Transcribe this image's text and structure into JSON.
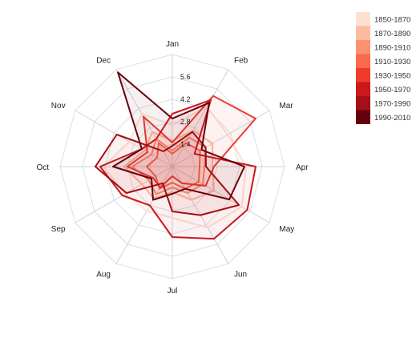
{
  "chart_data": {
    "type": "radar",
    "title": "",
    "axes": [
      "Jan",
      "Feb",
      "Mar",
      "Apr",
      "May",
      "Jun",
      "Jul",
      "Aug",
      "Sep",
      "Oct",
      "Nov",
      "Dec"
    ],
    "radial_ticks": [
      "1.4",
      "2.8",
      "4.2",
      "5.6"
    ],
    "rmax": 7,
    "grid": true,
    "legend_position": "top-right",
    "series": [
      {
        "name": "1850-1870",
        "color": "#fde0d2",
        "values": [
          2.6,
          4.3,
          4.0,
          4.6,
          5.0,
          4.4,
          3.2,
          3.2,
          3.4,
          4.3,
          3.1,
          3.8
        ]
      },
      {
        "name": "1870-1890",
        "color": "#fcbba1",
        "values": [
          1.6,
          2.6,
          2.9,
          2.5,
          3.0,
          2.4,
          1.6,
          2.3,
          2.2,
          3.0,
          2.0,
          2.5
        ]
      },
      {
        "name": "1890-1910",
        "color": "#fc9272",
        "values": [
          1.0,
          2.1,
          2.4,
          2.0,
          2.2,
          1.9,
          1.3,
          2.0,
          1.7,
          2.5,
          1.5,
          2.0
        ]
      },
      {
        "name": "1910-1930",
        "color": "#fb6a4a",
        "values": [
          0.8,
          1.7,
          2.0,
          1.7,
          1.9,
          1.6,
          1.0,
          1.6,
          1.2,
          1.6,
          1.1,
          1.7
        ]
      },
      {
        "name": "1930-1950",
        "color": "#ef3b2c",
        "values": [
          1.5,
          5.1,
          6.0,
          2.6,
          2.4,
          1.2,
          0.6,
          1.5,
          1.4,
          2.8,
          1.8,
          3.6
        ]
      },
      {
        "name": "1950-1970",
        "color": "#cb181d",
        "values": [
          3.3,
          4.8,
          1.6,
          5.2,
          5.4,
          5.2,
          4.4,
          2.8,
          3.6,
          4.5,
          2.2,
          2.0
        ]
      },
      {
        "name": "1970-1990",
        "color": "#a50f15",
        "values": [
          1.3,
          2.5,
          2.4,
          2.1,
          4.8,
          3.5,
          2.8,
          1.2,
          3.3,
          4.8,
          4.0,
          1.1
        ]
      },
      {
        "name": "1990-2010",
        "color": "#67000d",
        "values": [
          3.0,
          4.6,
          2.1,
          4.5,
          4.1,
          1.6,
          1.7,
          2.4,
          1.5,
          3.7,
          2.2,
          6.8
        ]
      }
    ]
  }
}
